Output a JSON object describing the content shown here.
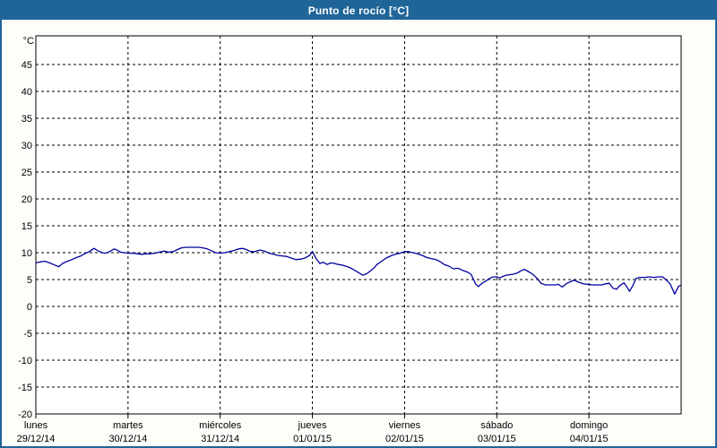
{
  "window": {
    "title": "Punto de rocío [°C]"
  },
  "colors": {
    "accent": "#1f6598",
    "titlebar_bg": "#1f6598",
    "titlebar_text": "#ffffff",
    "plot_bg": "#ffffff",
    "page_bg": "#fdfdfa",
    "grid": "#000000",
    "axis_text": "#000000",
    "line": "#0000a0"
  },
  "chart_data": {
    "type": "line",
    "title": "Punto de rocío [°C]",
    "legend": "none",
    "grid": "dashed-both-axes",
    "y_axis": {
      "unit": "°C",
      "min": -20,
      "max": 50.3,
      "tick_step": 5,
      "ticks": [
        45,
        40,
        35,
        30,
        25,
        20,
        15,
        10,
        5,
        0,
        -5,
        -10,
        -15,
        -20
      ]
    },
    "x_axis": {
      "days": [
        {
          "name": "lunes",
          "date": "29/12/14"
        },
        {
          "name": "martes",
          "date": "30/12/14"
        },
        {
          "name": "miércoles",
          "date": "31/12/14"
        },
        {
          "name": "jueves",
          "date": "01/01/15"
        },
        {
          "name": "viernes",
          "date": "02/01/15"
        },
        {
          "name": "sábado",
          "date": "03/01/15"
        },
        {
          "name": "domingo",
          "date": "04/01/15"
        }
      ],
      "span_days": 7
    },
    "series": [
      {
        "name": "Punto de rocío",
        "color": "#0000a0",
        "points": [
          [
            0,
            8.1
          ],
          [
            0.05,
            8.3
          ],
          [
            0.1,
            8.4
          ],
          [
            0.15,
            8.1
          ],
          [
            0.19,
            7.8
          ],
          [
            0.25,
            7.4
          ],
          [
            0.29,
            8
          ],
          [
            0.34,
            8.4
          ],
          [
            0.39,
            8.7
          ],
          [
            0.44,
            9.1
          ],
          [
            0.49,
            9.4
          ],
          [
            0.53,
            9.8
          ],
          [
            0.58,
            10.2
          ],
          [
            0.63,
            10.8
          ],
          [
            0.68,
            10.3
          ],
          [
            0.72,
            10
          ],
          [
            0.75,
            9.9
          ],
          [
            0.79,
            10.1
          ],
          [
            0.85,
            10.7
          ],
          [
            0.88,
            10.5
          ],
          [
            0.92,
            10.1
          ],
          [
            0.96,
            10
          ],
          [
            1,
            9.9
          ],
          [
            1.05,
            9.9
          ],
          [
            1.1,
            9.8
          ],
          [
            1.15,
            9.7
          ],
          [
            1.2,
            9.8
          ],
          [
            1.24,
            9.8
          ],
          [
            1.29,
            9.9
          ],
          [
            1.34,
            10.1
          ],
          [
            1.39,
            10.3
          ],
          [
            1.44,
            10.1
          ],
          [
            1.49,
            10.2
          ],
          [
            1.54,
            10.6
          ],
          [
            1.58,
            10.9
          ],
          [
            1.63,
            11
          ],
          [
            1.68,
            11
          ],
          [
            1.73,
            11
          ],
          [
            1.76,
            11
          ],
          [
            1.81,
            10.9
          ],
          [
            1.86,
            10.7
          ],
          [
            1.91,
            10.3
          ],
          [
            1.95,
            10
          ],
          [
            2,
            9.9
          ],
          [
            2.05,
            10
          ],
          [
            2.1,
            10.2
          ],
          [
            2.15,
            10.4
          ],
          [
            2.2,
            10.7
          ],
          [
            2.24,
            10.8
          ],
          [
            2.28,
            10.6
          ],
          [
            2.33,
            10.2
          ],
          [
            2.38,
            10.2
          ],
          [
            2.43,
            10.5
          ],
          [
            2.48,
            10.3
          ],
          [
            2.53,
            9.9
          ],
          [
            2.58,
            9.7
          ],
          [
            2.62,
            9.5
          ],
          [
            2.67,
            9.4
          ],
          [
            2.72,
            9.3
          ],
          [
            2.77,
            9
          ],
          [
            2.82,
            8.7
          ],
          [
            2.87,
            8.8
          ],
          [
            2.92,
            9
          ],
          [
            2.97,
            9.5
          ],
          [
            3,
            10.2
          ],
          [
            3.04,
            8.9
          ],
          [
            3.08,
            8
          ],
          [
            3.12,
            8.2
          ],
          [
            3.16,
            7.8
          ],
          [
            3.2,
            8.1
          ],
          [
            3.24,
            8
          ],
          [
            3.28,
            7.8
          ],
          [
            3.32,
            7.7
          ],
          [
            3.36,
            7.5
          ],
          [
            3.41,
            7.2
          ],
          [
            3.46,
            6.7
          ],
          [
            3.51,
            6.2
          ],
          [
            3.55,
            5.8
          ],
          [
            3.59,
            6.1
          ],
          [
            3.63,
            6.6
          ],
          [
            3.67,
            7.2
          ],
          [
            3.7,
            7.8
          ],
          [
            3.75,
            8.4
          ],
          [
            3.8,
            9
          ],
          [
            3.85,
            9.4
          ],
          [
            3.9,
            9.7
          ],
          [
            3.95,
            9.9
          ],
          [
            4,
            10.2
          ],
          [
            4.04,
            10.2
          ],
          [
            4.09,
            10
          ],
          [
            4.14,
            9.8
          ],
          [
            4.19,
            9.5
          ],
          [
            4.24,
            9.1
          ],
          [
            4.29,
            8.9
          ],
          [
            4.34,
            8.7
          ],
          [
            4.38,
            8.4
          ],
          [
            4.43,
            7.8
          ],
          [
            4.48,
            7.5
          ],
          [
            4.53,
            7
          ],
          [
            4.58,
            7.1
          ],
          [
            4.63,
            6.7
          ],
          [
            4.68,
            6.4
          ],
          [
            4.72,
            6
          ],
          [
            4.74,
            5.3
          ],
          [
            4.77,
            4.2
          ],
          [
            4.8,
            3.7
          ],
          [
            4.84,
            4.3
          ],
          [
            4.88,
            4.7
          ],
          [
            4.92,
            5.2
          ],
          [
            4.96,
            5.5
          ],
          [
            5,
            5.5
          ],
          [
            5.03,
            5.3
          ],
          [
            5.07,
            5.6
          ],
          [
            5.1,
            5.8
          ],
          [
            5.14,
            5.9
          ],
          [
            5.18,
            6
          ],
          [
            5.22,
            6.2
          ],
          [
            5.27,
            6.7
          ],
          [
            5.3,
            6.9
          ],
          [
            5.34,
            6.5
          ],
          [
            5.39,
            6
          ],
          [
            5.44,
            5.2
          ],
          [
            5.48,
            4.3
          ],
          [
            5.53,
            4
          ],
          [
            5.58,
            4
          ],
          [
            5.63,
            4
          ],
          [
            5.67,
            4.1
          ],
          [
            5.71,
            3.6
          ],
          [
            5.76,
            4.3
          ],
          [
            5.8,
            4.6
          ],
          [
            5.84,
            4.9
          ],
          [
            5.89,
            4.5
          ],
          [
            5.94,
            4.2
          ],
          [
            5.99,
            4.1
          ],
          [
            6.04,
            4
          ],
          [
            6.09,
            4
          ],
          [
            6.14,
            4
          ],
          [
            6.18,
            4.2
          ],
          [
            6.22,
            4.3
          ],
          [
            6.26,
            3.4
          ],
          [
            6.3,
            3.2
          ],
          [
            6.33,
            3.8
          ],
          [
            6.38,
            4.4
          ],
          [
            6.42,
            3.4
          ],
          [
            6.44,
            2.8
          ],
          [
            6.48,
            4
          ],
          [
            6.51,
            5.2
          ],
          [
            6.55,
            5.4
          ],
          [
            6.6,
            5.4
          ],
          [
            6.65,
            5.5
          ],
          [
            6.7,
            5.4
          ],
          [
            6.75,
            5.5
          ],
          [
            6.8,
            5.5
          ],
          [
            6.84,
            4.9
          ],
          [
            6.88,
            4.2
          ],
          [
            6.93,
            2.3
          ],
          [
            6.97,
            3.7
          ],
          [
            6.99,
            3.9
          ]
        ]
      }
    ]
  }
}
